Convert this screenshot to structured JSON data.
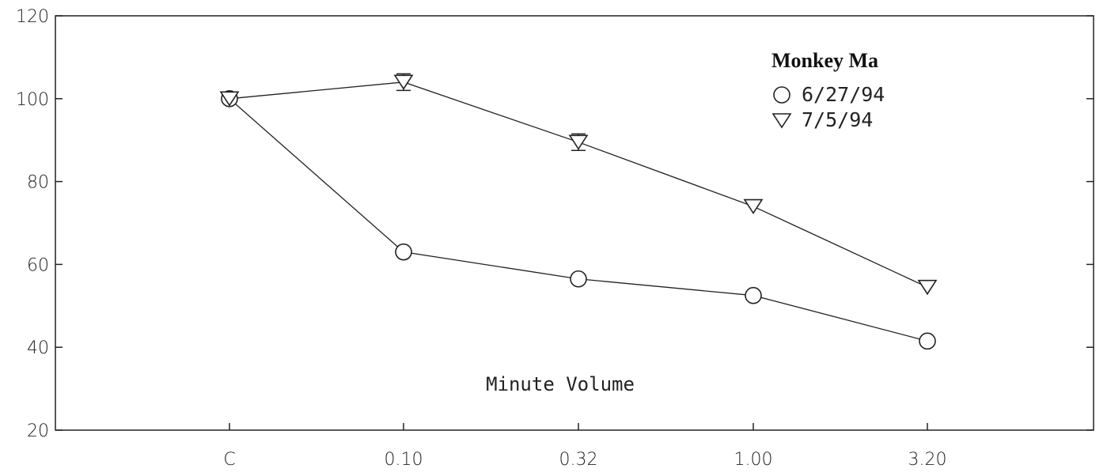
{
  "chart_data": {
    "type": "line",
    "title": "",
    "xlabel": "",
    "ylabel": "",
    "annotation": "Minute Volume",
    "categories": [
      "C",
      "0.10",
      "0.32",
      "1.00",
      "3.20"
    ],
    "ylim": [
      20,
      120
    ],
    "yticks": [
      20,
      40,
      60,
      80,
      100,
      120
    ],
    "grid": false,
    "legend": {
      "title": "Monkey Ma",
      "placement": "top-right"
    },
    "series": [
      {
        "name": "6/27/94",
        "marker": "circle",
        "values": [
          100,
          63,
          56.5,
          52.5,
          41.5
        ],
        "errors": [
          0,
          0,
          0,
          0,
          0
        ]
      },
      {
        "name": "7/5/94",
        "marker": "triangle-down",
        "values": [
          100,
          104,
          89.5,
          74,
          54.5
        ],
        "errors": [
          0,
          2,
          2,
          0,
          0
        ]
      }
    ]
  }
}
